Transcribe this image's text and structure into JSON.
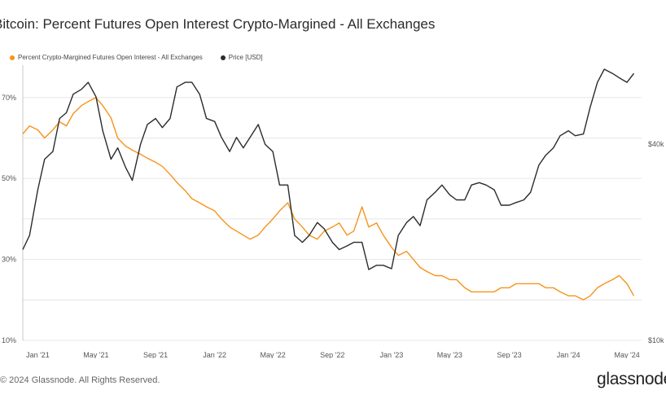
{
  "header": {
    "title": "Bitcoin: Percent Futures Open Interest Crypto-Margined - All Exchanges"
  },
  "footer": {
    "copyright": "2024 Glassnode. All Rights Reserved.",
    "brand": "glassnode"
  },
  "colors": {
    "percent_series": "#f7931a",
    "price_series": "#2b2b2b",
    "grid": "#e6e6e6",
    "axis_line": "#c8c8c8"
  },
  "chart_data": {
    "type": "line",
    "title": "Bitcoin: Percent Futures Open Interest Crypto-Margined - All Exchanges",
    "legend_position": "top-left",
    "grid": true,
    "x_ticks": [
      "Jan '21",
      "May '21",
      "Sep '21",
      "Jan '22",
      "May '22",
      "Sep '22",
      "Jan '23",
      "May '23",
      "Sep '23",
      "Jan '24",
      "May '24"
    ],
    "x_range": [
      "2020-12-01",
      "2024-05-31"
    ],
    "y_left": {
      "ticks": [
        "10%",
        "30%",
        "50%",
        "70%"
      ],
      "range": [
        10,
        78
      ]
    },
    "y_right": {
      "ticks": [
        "$10k",
        "$40k"
      ],
      "scale": "log",
      "range": [
        10000,
        70000
      ]
    },
    "series": [
      {
        "name": "Percent Crypto-Margined Futures Open Interest - All Exchanges",
        "axis": "left",
        "color": "#f7931a",
        "x": [
          "2020-12-01",
          "2020-12-15",
          "2021-01-01",
          "2021-01-15",
          "2021-02-01",
          "2021-02-15",
          "2021-03-01",
          "2021-03-15",
          "2021-04-01",
          "2021-04-15",
          "2021-05-01",
          "2021-05-15",
          "2021-06-01",
          "2021-06-15",
          "2021-07-01",
          "2021-07-15",
          "2021-08-01",
          "2021-08-15",
          "2021-09-01",
          "2021-09-15",
          "2021-10-01",
          "2021-10-15",
          "2021-11-01",
          "2021-11-15",
          "2021-12-01",
          "2021-12-15",
          "2022-01-01",
          "2022-01-15",
          "2022-02-01",
          "2022-02-15",
          "2022-03-01",
          "2022-03-15",
          "2022-04-01",
          "2022-04-15",
          "2022-05-01",
          "2022-05-15",
          "2022-06-01",
          "2022-06-15",
          "2022-07-01",
          "2022-07-15",
          "2022-08-01",
          "2022-08-15",
          "2022-09-01",
          "2022-09-15",
          "2022-10-01",
          "2022-10-15",
          "2022-11-01",
          "2022-11-15",
          "2022-12-01",
          "2022-12-15",
          "2023-01-01",
          "2023-01-15",
          "2023-02-01",
          "2023-02-15",
          "2023-03-01",
          "2023-03-15",
          "2023-04-01",
          "2023-04-15",
          "2023-05-01",
          "2023-05-15",
          "2023-06-01",
          "2023-06-15",
          "2023-07-01",
          "2023-07-15",
          "2023-08-01",
          "2023-08-15",
          "2023-09-01",
          "2023-09-15",
          "2023-10-01",
          "2023-10-15",
          "2023-11-01",
          "2023-11-15",
          "2023-12-01",
          "2023-12-15",
          "2024-01-01",
          "2024-01-15",
          "2024-02-01",
          "2024-02-15",
          "2024-03-01",
          "2024-03-15",
          "2024-04-01",
          "2024-04-15",
          "2024-05-01",
          "2024-05-15"
        ],
        "values": [
          61,
          63,
          62,
          60,
          62,
          64,
          63,
          66,
          68,
          69,
          70,
          68,
          65,
          60,
          58,
          57,
          56,
          55,
          54,
          53,
          51,
          49,
          47,
          45,
          44,
          43,
          42,
          40,
          38,
          37,
          36,
          35,
          36,
          38,
          40,
          42,
          44,
          40,
          38,
          36,
          35,
          37,
          38,
          39,
          36,
          37,
          43,
          38,
          39,
          36,
          33,
          31,
          32,
          30,
          28,
          27,
          26,
          26,
          25,
          25,
          23,
          22,
          22,
          22,
          22,
          23,
          23,
          24,
          24,
          24,
          24,
          23,
          23,
          22,
          21,
          21,
          20,
          21,
          23,
          24,
          25,
          26,
          24,
          21
        ]
      },
      {
        "name": "Price [USD]",
        "axis": "right",
        "color": "#2b2b2b",
        "x": [
          "2020-12-01",
          "2020-12-15",
          "2021-01-01",
          "2021-01-15",
          "2021-02-01",
          "2021-02-15",
          "2021-03-01",
          "2021-03-15",
          "2021-04-01",
          "2021-04-15",
          "2021-05-01",
          "2021-05-15",
          "2021-06-01",
          "2021-06-15",
          "2021-07-01",
          "2021-07-15",
          "2021-08-01",
          "2021-08-15",
          "2021-09-01",
          "2021-09-15",
          "2021-10-01",
          "2021-10-15",
          "2021-11-01",
          "2021-11-15",
          "2021-12-01",
          "2021-12-15",
          "2022-01-01",
          "2022-01-15",
          "2022-02-01",
          "2022-02-15",
          "2022-03-01",
          "2022-03-15",
          "2022-04-01",
          "2022-04-15",
          "2022-05-01",
          "2022-05-15",
          "2022-06-01",
          "2022-06-15",
          "2022-07-01",
          "2022-07-15",
          "2022-08-01",
          "2022-08-15",
          "2022-09-01",
          "2022-09-15",
          "2022-10-01",
          "2022-10-15",
          "2022-11-01",
          "2022-11-15",
          "2022-12-01",
          "2022-12-15",
          "2023-01-01",
          "2023-01-15",
          "2023-02-01",
          "2023-02-15",
          "2023-03-01",
          "2023-03-15",
          "2023-04-01",
          "2023-04-15",
          "2023-05-01",
          "2023-05-15",
          "2023-06-01",
          "2023-06-15",
          "2023-07-01",
          "2023-07-15",
          "2023-08-01",
          "2023-08-15",
          "2023-09-01",
          "2023-09-15",
          "2023-10-01",
          "2023-10-15",
          "2023-11-01",
          "2023-11-15",
          "2023-12-01",
          "2023-12-15",
          "2024-01-01",
          "2024-01-15",
          "2024-02-01",
          "2024-02-15",
          "2024-03-01",
          "2024-03-15",
          "2024-04-01",
          "2024-04-15",
          "2024-05-01",
          "2024-05-15"
        ],
        "values": [
          19000,
          21000,
          29000,
          36000,
          38000,
          48000,
          50000,
          57000,
          59000,
          62000,
          56000,
          44000,
          36000,
          39000,
          34000,
          31000,
          40000,
          46000,
          48000,
          45000,
          48000,
          60000,
          62000,
          62000,
          57000,
          48000,
          47000,
          42000,
          38000,
          42000,
          39000,
          42000,
          46000,
          40000,
          38000,
          30000,
          30000,
          21000,
          20000,
          21000,
          23000,
          22000,
          20000,
          19000,
          19500,
          20000,
          20000,
          16500,
          17000,
          17000,
          16600,
          21000,
          23000,
          24000,
          22500,
          27000,
          28500,
          30000,
          28000,
          27000,
          27000,
          30000,
          30500,
          30000,
          29000,
          26000,
          26000,
          26500,
          27000,
          28500,
          34500,
          37000,
          39000,
          42500,
          44000,
          42500,
          43000,
          52000,
          62000,
          68000,
          66000,
          64000,
          62000,
          66000
        ]
      }
    ]
  }
}
